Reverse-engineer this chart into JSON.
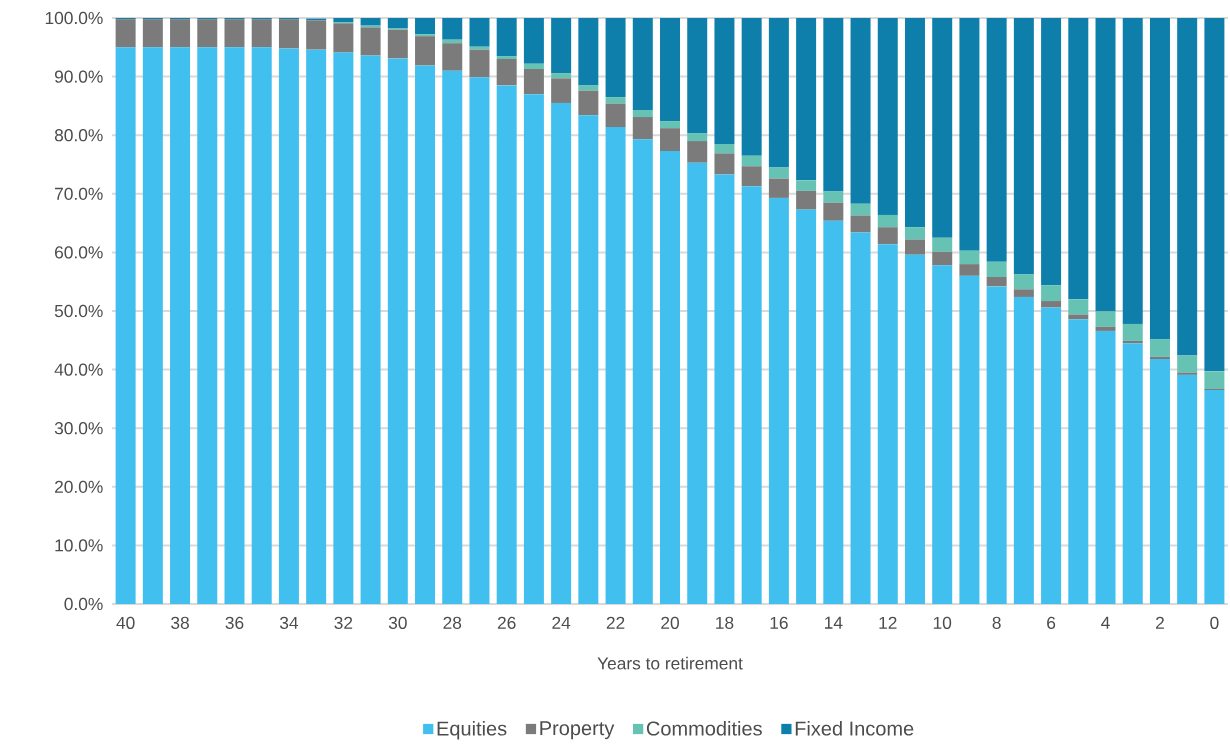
{
  "chart_data": {
    "type": "bar",
    "stacked": true,
    "xlabel": "Years to retirement",
    "categories": [
      "40",
      null,
      "38",
      null,
      "36",
      null,
      "34",
      null,
      "32",
      null,
      "30",
      null,
      "28",
      null,
      "26",
      null,
      "24",
      null,
      "22",
      null,
      "20",
      null,
      "18",
      null,
      "16",
      null,
      "14",
      null,
      "12",
      null,
      "10",
      null,
      "8",
      null,
      "6",
      null,
      "4",
      null,
      "2",
      null,
      "0"
    ],
    "series": [
      {
        "name": "Equities",
        "color": "#41bfee",
        "values": [
          95.0,
          95.0,
          95.0,
          95.0,
          95.0,
          95.0,
          94.8,
          94.6,
          94.1,
          93.6,
          93.1,
          91.9,
          91.0,
          89.9,
          88.5,
          87.0,
          85.5,
          83.4,
          81.4,
          79.3,
          77.3,
          75.3,
          73.3,
          71.3,
          69.3,
          67.3,
          65.4,
          63.4,
          61.4,
          59.6,
          57.8,
          56.0,
          54.2,
          52.4,
          50.6,
          48.6,
          46.6,
          44.5,
          41.8,
          39.1,
          36.5
        ]
      },
      {
        "name": "Property",
        "color": "#7b7b7b",
        "values": [
          4.8,
          4.8,
          4.8,
          4.8,
          4.8,
          4.8,
          5.0,
          5.0,
          5.0,
          4.8,
          4.9,
          5.0,
          4.7,
          4.7,
          4.5,
          4.3,
          4.2,
          4.2,
          4.0,
          3.8,
          3.9,
          3.7,
          3.6,
          3.4,
          3.3,
          3.2,
          3.1,
          2.9,
          2.9,
          2.6,
          2.3,
          2.0,
          1.6,
          1.3,
          1.1,
          0.8,
          0.7,
          0.4,
          0.4,
          0.4,
          0.2
        ]
      },
      {
        "name": "Commodities",
        "color": "#66c2b3",
        "values": [
          0,
          0,
          0,
          0,
          0,
          0,
          0,
          0,
          0.2,
          0.3,
          0.2,
          0.3,
          0.6,
          0.5,
          0.5,
          0.9,
          0.9,
          0.9,
          1.1,
          1.2,
          1.2,
          1.3,
          1.6,
          1.8,
          1.9,
          1.8,
          1.9,
          2.0,
          2.1,
          2.1,
          2.4,
          2.3,
          2.6,
          2.6,
          2.7,
          2.6,
          2.6,
          2.9,
          3.0,
          2.9,
          3.0
        ]
      },
      {
        "name": "Fixed Income",
        "color": "#0e7fab",
        "values": [
          0.2,
          0.2,
          0.2,
          0.2,
          0.2,
          0.2,
          0.2,
          0.3,
          0.7,
          1.3,
          1.8,
          2.8,
          3.7,
          4.9,
          6.5,
          7.8,
          9.4,
          11.5,
          13.5,
          15.7,
          17.6,
          19.7,
          21.5,
          23.5,
          25.5,
          27.7,
          29.6,
          31.7,
          33.6,
          35.7,
          37.5,
          39.7,
          41.6,
          43.7,
          45.6,
          48.0,
          50.1,
          52.2,
          54.8,
          57.6,
          60.3
        ]
      }
    ],
    "ylim": [
      0,
      100
    ],
    "yticks": [
      {
        "value": 0,
        "label": "0.0%"
      },
      {
        "value": 10,
        "label": "10.0%"
      },
      {
        "value": 20,
        "label": "20.0%"
      },
      {
        "value": 30,
        "label": "30.0%"
      },
      {
        "value": 40,
        "label": "40.0%"
      },
      {
        "value": 50,
        "label": "50.0%"
      },
      {
        "value": 60,
        "label": "60.0%"
      },
      {
        "value": 70,
        "label": "70.0%"
      },
      {
        "value": 80,
        "label": "80.0%"
      },
      {
        "value": 90,
        "label": "90.0%"
      },
      {
        "value": 100,
        "label": "100.0%"
      }
    ],
    "grid": "y",
    "legend": "bottom"
  }
}
